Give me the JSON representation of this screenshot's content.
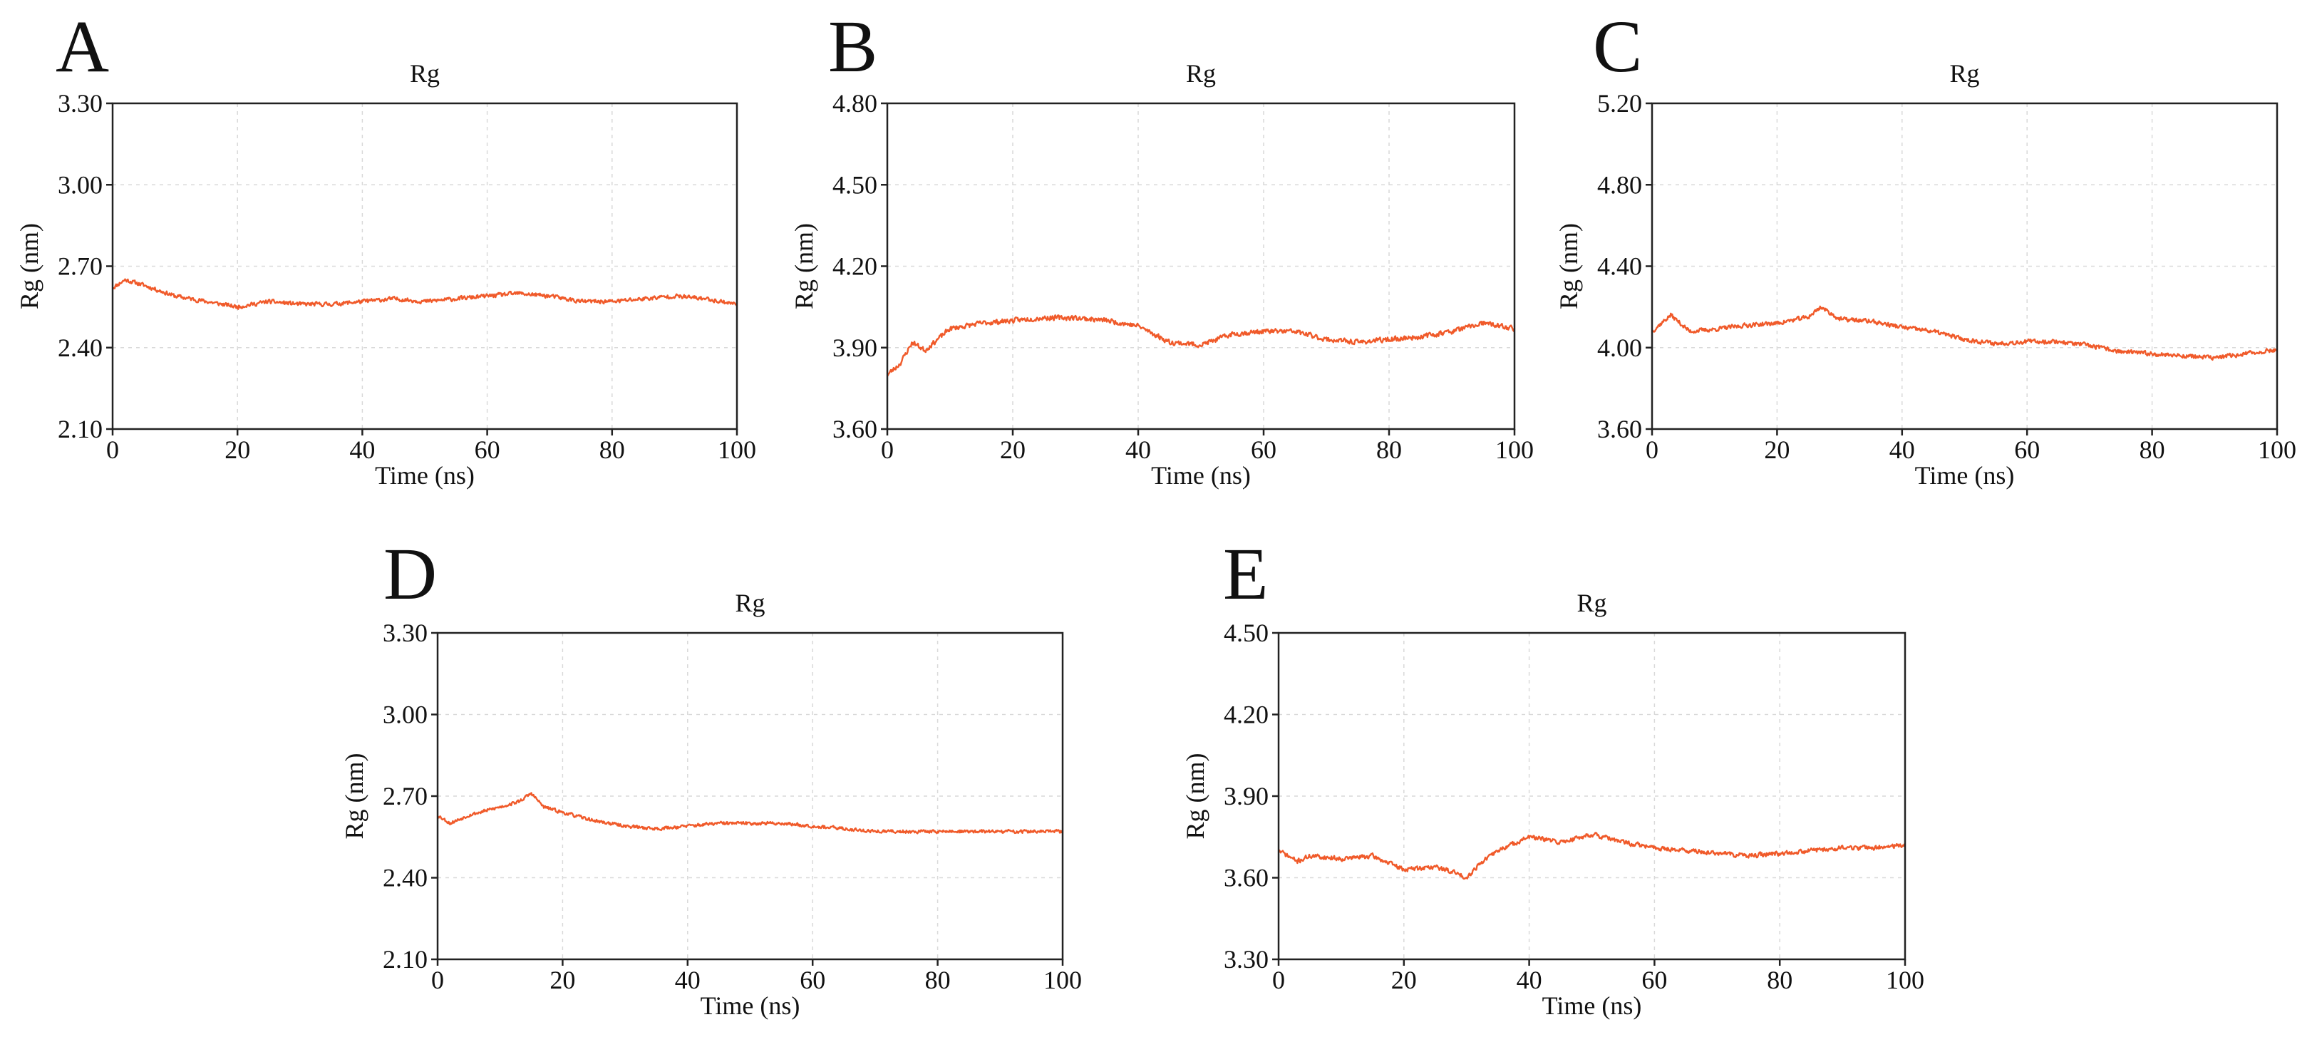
{
  "figure": {
    "panels": [
      {
        "letter": "A"
      },
      {
        "letter": "B"
      },
      {
        "letter": "C"
      },
      {
        "letter": "D"
      },
      {
        "letter": "E"
      }
    ]
  },
  "colors": {
    "series": "#f05a2a"
  },
  "chart_data": [
    {
      "panel": "A",
      "type": "line",
      "title": "Rg",
      "xlabel": "Time (ns)",
      "ylabel": "Rg (nm)",
      "xlim": [
        0,
        100
      ],
      "ylim": [
        2.1,
        3.3
      ],
      "xticks": [
        0,
        20,
        40,
        60,
        80,
        100
      ],
      "yticks": [
        "2.10",
        "2.40",
        "2.70",
        "3.00",
        "3.30"
      ],
      "grid": true,
      "series": [
        {
          "name": "Rg",
          "noise": 0.01,
          "seed": 11,
          "x": [
            0,
            2,
            5,
            10,
            15,
            20,
            25,
            30,
            35,
            40,
            45,
            50,
            55,
            60,
            65,
            70,
            75,
            80,
            85,
            90,
            95,
            100
          ],
          "y": [
            2.62,
            2.65,
            2.63,
            2.59,
            2.57,
            2.55,
            2.57,
            2.56,
            2.56,
            2.57,
            2.58,
            2.57,
            2.58,
            2.59,
            2.6,
            2.59,
            2.57,
            2.57,
            2.58,
            2.59,
            2.58,
            2.56
          ]
        }
      ]
    },
    {
      "panel": "B",
      "type": "line",
      "title": "Rg",
      "xlabel": "Time (ns)",
      "ylabel": "Rg (nm)",
      "xlim": [
        0,
        100
      ],
      "ylim": [
        3.6,
        4.8
      ],
      "xticks": [
        0,
        20,
        40,
        60,
        80,
        100
      ],
      "yticks": [
        "3.60",
        "3.90",
        "4.20",
        "4.50",
        "4.80"
      ],
      "grid": true,
      "series": [
        {
          "name": "Rg",
          "noise": 0.012,
          "seed": 23,
          "x": [
            0,
            2,
            4,
            6,
            8,
            10,
            15,
            20,
            25,
            30,
            35,
            40,
            45,
            50,
            55,
            60,
            65,
            70,
            75,
            80,
            85,
            90,
            95,
            100
          ],
          "y": [
            3.8,
            3.84,
            3.92,
            3.89,
            3.93,
            3.97,
            3.99,
            4.0,
            4.01,
            4.01,
            4.0,
            3.98,
            3.92,
            3.91,
            3.95,
            3.96,
            3.96,
            3.93,
            3.92,
            3.93,
            3.94,
            3.96,
            3.99,
            3.97
          ]
        }
      ]
    },
    {
      "panel": "C",
      "type": "line",
      "title": "Rg",
      "xlabel": "Time (ns)",
      "ylabel": "Rg (nm)",
      "xlim": [
        0,
        100
      ],
      "ylim": [
        3.6,
        5.2
      ],
      "xticks": [
        0,
        20,
        40,
        60,
        80,
        100
      ],
      "yticks": [
        "3.60",
        "4.00",
        "4.40",
        "4.80",
        "5.20"
      ],
      "grid": true,
      "series": [
        {
          "name": "Rg",
          "noise": 0.014,
          "seed": 37,
          "x": [
            0,
            3,
            6,
            10,
            15,
            20,
            25,
            27,
            30,
            35,
            40,
            45,
            50,
            55,
            60,
            65,
            70,
            75,
            80,
            85,
            90,
            95,
            100
          ],
          "y": [
            4.08,
            4.16,
            4.08,
            4.09,
            4.11,
            4.12,
            4.15,
            4.2,
            4.14,
            4.13,
            4.1,
            4.08,
            4.04,
            4.02,
            4.03,
            4.03,
            4.01,
            3.98,
            3.97,
            3.96,
            3.95,
            3.97,
            3.99
          ]
        }
      ]
    },
    {
      "panel": "D",
      "type": "line",
      "title": "Rg",
      "xlabel": "Time (ns)",
      "ylabel": "Rg (nm)",
      "xlim": [
        0,
        100
      ],
      "ylim": [
        2.1,
        3.3
      ],
      "xticks": [
        0,
        20,
        40,
        60,
        80,
        100
      ],
      "yticks": [
        "2.10",
        "2.40",
        "2.70",
        "3.00",
        "3.30"
      ],
      "grid": true,
      "series": [
        {
          "name": "Rg",
          "noise": 0.008,
          "seed": 53,
          "x": [
            0,
            2,
            5,
            10,
            13,
            15,
            17,
            20,
            25,
            30,
            35,
            40,
            45,
            50,
            55,
            60,
            65,
            70,
            75,
            80,
            85,
            90,
            95,
            100
          ],
          "y": [
            2.63,
            2.6,
            2.63,
            2.66,
            2.68,
            2.71,
            2.66,
            2.64,
            2.61,
            2.59,
            2.58,
            2.59,
            2.6,
            2.6,
            2.6,
            2.59,
            2.58,
            2.57,
            2.57,
            2.57,
            2.57,
            2.57,
            2.57,
            2.57
          ]
        }
      ]
    },
    {
      "panel": "E",
      "type": "line",
      "title": "Rg",
      "xlabel": "Time (ns)",
      "ylabel": "Rg (nm)",
      "xlim": [
        0,
        100
      ],
      "ylim": [
        3.3,
        4.5
      ],
      "xticks": [
        0,
        20,
        40,
        60,
        80,
        100
      ],
      "yticks": [
        "3.30",
        "3.60",
        "3.90",
        "4.20",
        "4.50"
      ],
      "grid": true,
      "series": [
        {
          "name": "Rg",
          "noise": 0.011,
          "seed": 71,
          "x": [
            0,
            3,
            5,
            10,
            15,
            20,
            25,
            28,
            30,
            32,
            35,
            40,
            45,
            50,
            55,
            60,
            65,
            70,
            75,
            80,
            85,
            90,
            95,
            100
          ],
          "y": [
            3.7,
            3.66,
            3.68,
            3.67,
            3.68,
            3.63,
            3.64,
            3.62,
            3.6,
            3.65,
            3.7,
            3.75,
            3.73,
            3.76,
            3.73,
            3.71,
            3.7,
            3.69,
            3.68,
            3.69,
            3.7,
            3.71,
            3.71,
            3.72
          ]
        }
      ]
    }
  ]
}
